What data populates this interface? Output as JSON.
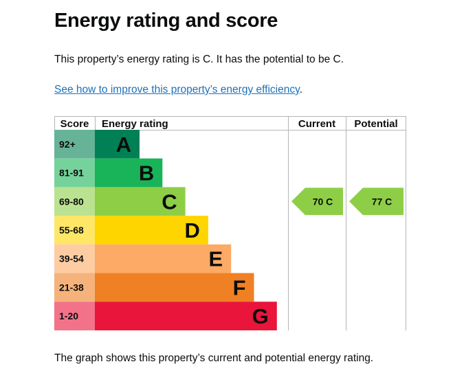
{
  "page": {
    "title": "Energy rating and score",
    "summary": "This property’s energy rating is C. It has the potential to be C.",
    "link_text": "See how to improve this property’s energy efficiency",
    "link_suffix": ".",
    "caption": "The graph shows this property’s current and potential energy rating."
  },
  "chart_data": {
    "type": "bar",
    "headers": {
      "score": "Score",
      "rating": "Energy rating",
      "current": "Current",
      "potential": "Potential"
    },
    "bands": [
      {
        "score": "92+",
        "letter": "A",
        "color": "#008054",
        "score_bg": "#66b398"
      },
      {
        "score": "81-91",
        "letter": "B",
        "color": "#19b459",
        "score_bg": "#75d29b"
      },
      {
        "score": "69-80",
        "letter": "C",
        "color": "#8dce46",
        "score_bg": "#bbe290"
      },
      {
        "score": "55-68",
        "letter": "D",
        "color": "#ffd500",
        "score_bg": "#ffe666"
      },
      {
        "score": "39-54",
        "letter": "E",
        "color": "#fcaa65",
        "score_bg": "#fdcca3"
      },
      {
        "score": "21-38",
        "letter": "F",
        "color": "#ef8023",
        "score_bg": "#f5b37b"
      },
      {
        "score": "1-20",
        "letter": "G",
        "color": "#e9153b",
        "score_bg": "#f27389"
      }
    ],
    "current": {
      "value": 70,
      "letter": "C",
      "label": "70  C",
      "color": "#8dce46"
    },
    "potential": {
      "value": 77,
      "letter": "C",
      "label": "77  C",
      "color": "#8dce46"
    }
  }
}
